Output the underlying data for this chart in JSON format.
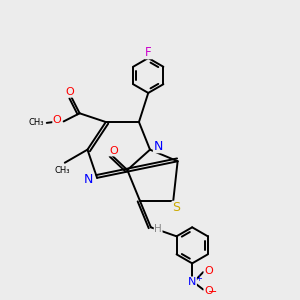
{
  "bg_color": "#ececec",
  "bond_color": "#000000",
  "bond_width": 1.4,
  "figsize": [
    3.0,
    3.0
  ],
  "dpi": 100,
  "atom_colors": {
    "N": "#0000ff",
    "O": "#ff0000",
    "S": "#ccaa00",
    "F": "#cc00cc",
    "H": "#888888",
    "C": "#000000"
  }
}
